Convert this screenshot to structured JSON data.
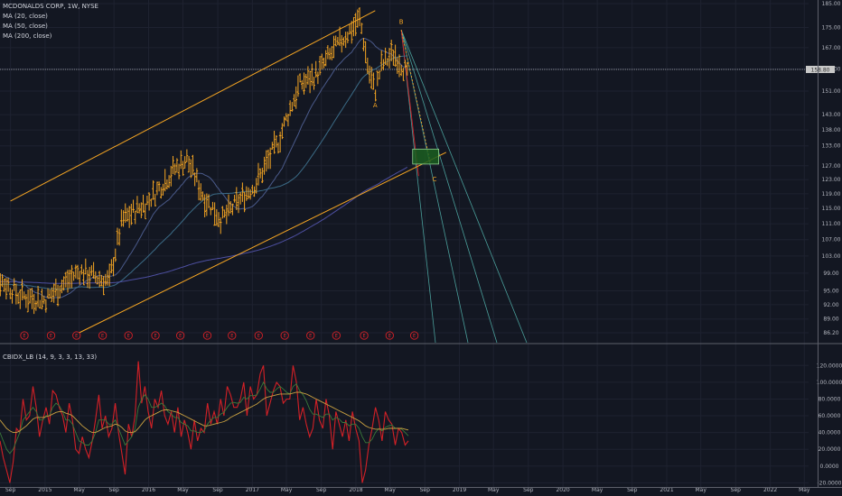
{
  "legend": {
    "symbol": "MCDONALDS CORP, 1W, NYSE",
    "ma20": "MA (20, close)",
    "ma50": "MA (50, close)",
    "ma200": "MA (200, close)",
    "indicator": "CBIDX_LB (14, 9, 3, 3, 13, 33)"
  },
  "colors": {
    "background": "#131722",
    "grid": "#1e2230",
    "bar": "#f6a623",
    "channel": "#f6a623",
    "ma20": "#4a5a8a",
    "ma50": "#3b6b86",
    "ma200": "#4d4fa0",
    "fan": "#4a9e9a",
    "target_box": "#1b5e20",
    "cbidx_main": "#d32026",
    "cbidx_fast": "#3a7a3a",
    "cbidx_slow": "#c8a040",
    "earnings": "#d32026"
  },
  "wave_labels": [
    "A",
    "B",
    "C"
  ],
  "earnings_marker": "E",
  "price_readout": "158.80",
  "chart_data": [
    {
      "type": "bar",
      "title": "MCDONALDS CORP, 1W, NYSE",
      "y_scale": "log",
      "ylim": [
        86.2,
        185
      ],
      "y_ticks": [
        "185.00",
        "175.00",
        "167.00",
        "159.00",
        "151.00",
        "143.00",
        "138.00",
        "133.00",
        "127.00",
        "123.00",
        "119.00",
        "115.00",
        "111.00",
        "107.00",
        "103.00",
        "99.00",
        "95.00",
        "92.00",
        "89.00",
        "86.20"
      ],
      "x_ticks": [
        "Sep",
        "2015",
        "May",
        "Sep",
        "2016",
        "May",
        "Sep",
        "2017",
        "May",
        "Sep",
        "2018",
        "May",
        "Sep",
        "2019",
        "May",
        "Sep",
        "2020",
        "May",
        "Sep",
        "2021",
        "May",
        "Sep",
        "2022",
        "May"
      ],
      "price_path": [
        [
          "2014-06-01",
          100.5
        ],
        [
          "2014-10-01",
          94.0
        ],
        [
          "2015-01-01",
          93.0
        ],
        [
          "2015-05-01",
          99.5
        ],
        [
          "2015-08-15",
          97.0
        ],
        [
          "2015-10-01",
          112.0
        ],
        [
          "2016-01-01",
          117.0
        ],
        [
          "2016-04-01",
          126.0
        ],
        [
          "2016-05-15",
          129.0
        ],
        [
          "2016-07-15",
          118.0
        ],
        [
          "2016-09-15",
          112.0
        ],
        [
          "2016-11-01",
          116.0
        ],
        [
          "2017-01-15",
          122.0
        ],
        [
          "2017-04-01",
          134.0
        ],
        [
          "2017-06-15",
          153.0
        ],
        [
          "2017-08-15",
          157.0
        ],
        [
          "2017-10-15",
          166.0
        ],
        [
          "2018-01-15",
          178.5
        ],
        [
          "2018-02-15",
          158.0
        ],
        [
          "2018-03-10",
          151.0
        ],
        [
          "2018-04-01",
          160.0
        ],
        [
          "2018-05-15",
          165.0
        ],
        [
          "2018-06-25",
          158.5
        ],
        [
          "2018-07-05",
          155.0
        ]
      ],
      "annotations": [
        {
          "label": "A",
          "date": "2018-03-10",
          "price": 145.5
        },
        {
          "label": "B",
          "date": "2018-06-10",
          "price": 176.5
        },
        {
          "label": "C",
          "date": "2018-10-05",
          "price": 122.5
        }
      ],
      "channel": {
        "upper": [
          [
            "2014-09-01",
            117.0
          ],
          [
            "2018-03-10",
            182.0
          ]
        ],
        "lower": [
          [
            "2015-05-01",
            86.2
          ],
          [
            "2018-11-15",
            131.0
          ]
        ]
      },
      "target_zone": {
        "from": "2018-07-20",
        "to": "2018-10-20",
        "low": 127.5,
        "high": 132.0
      },
      "earnings_dates": [
        "2014-10-20",
        "2015-01-22",
        "2015-04-22",
        "2015-07-23",
        "2015-10-22",
        "2016-01-25",
        "2016-04-22",
        "2016-07-26",
        "2016-10-21",
        "2017-01-23",
        "2017-04-25",
        "2017-07-25",
        "2017-10-24",
        "2018-01-30",
        "2018-04-30",
        "2018-07-26"
      ]
    },
    {
      "type": "line",
      "title": "CBIDX_LB (14, 9, 3, 3, 13, 33)",
      "ylim": [
        -25,
        130
      ],
      "y_ticks": [
        "120.0000",
        "100.0000",
        "80.0000",
        "60.0000",
        "40.0000",
        "20.0000",
        "0.0000",
        "-20.0000"
      ],
      "series": [
        {
          "name": "main",
          "values": [
            30,
            10,
            -5,
            -20,
            5,
            45,
            40,
            80,
            55,
            60,
            95,
            70,
            35,
            55,
            70,
            50,
            90,
            85,
            70,
            60,
            40,
            75,
            55,
            20,
            15,
            35,
            20,
            10,
            30,
            55,
            85,
            45,
            60,
            35,
            45,
            75,
            40,
            15,
            -10,
            50,
            35,
            60,
            125,
            75,
            95,
            65,
            45,
            80,
            70,
            90,
            60,
            50,
            65,
            40,
            70,
            35,
            55,
            40,
            20,
            55,
            30,
            45,
            40,
            75,
            50,
            65,
            50,
            80,
            60,
            95,
            85,
            70,
            70,
            80,
            100,
            60,
            95,
            80,
            85,
            110,
            120,
            60,
            75,
            90,
            100,
            95,
            75,
            80,
            80,
            120,
            100,
            55,
            70,
            50,
            35,
            45,
            80,
            55,
            45,
            80,
            60,
            20,
            65,
            50,
            35,
            55,
            30,
            65,
            45,
            30,
            -20,
            -5,
            25,
            45,
            70,
            55,
            30,
            65,
            55,
            50,
            25,
            45,
            40,
            25,
            30
          ]
        },
        {
          "name": "fast",
          "values": [
            40,
            30,
            20,
            15,
            20,
            30,
            40,
            55,
            60,
            65,
            70,
            65,
            55,
            55,
            60,
            60,
            70,
            75,
            72,
            65,
            55,
            55,
            50,
            40,
            30,
            28,
            25,
            25,
            30,
            40,
            55,
            55,
            55,
            50,
            50,
            55,
            45,
            35,
            25,
            30,
            35,
            45,
            70,
            80,
            85,
            80,
            70,
            70,
            72,
            75,
            72,
            65,
            62,
            58,
            58,
            52,
            50,
            48,
            42,
            42,
            40,
            40,
            42,
            50,
            55,
            58,
            58,
            62,
            64,
            70,
            75,
            76,
            75,
            76,
            82,
            80,
            84,
            84,
            85,
            92,
            100,
            92,
            88,
            88,
            92,
            95,
            92,
            88,
            86,
            95,
            98,
            90,
            85,
            78,
            68,
            62,
            62,
            60,
            58,
            62,
            62,
            55,
            58,
            56,
            52,
            52,
            48,
            50,
            50,
            45,
            35,
            28,
            28,
            32,
            40,
            45,
            42,
            46,
            48,
            49,
            45,
            45,
            44,
            40,
            36
          ]
        },
        {
          "name": "slow",
          "values": [
            55,
            50,
            45,
            42,
            40,
            40,
            42,
            45,
            48,
            52,
            56,
            58,
            58,
            58,
            59,
            60,
            62,
            64,
            65,
            65,
            63,
            62,
            60,
            56,
            52,
            48,
            45,
            42,
            40,
            40,
            42,
            44,
            46,
            47,
            48,
            50,
            49,
            46,
            42,
            40,
            40,
            41,
            45,
            50,
            55,
            58,
            60,
            62,
            64,
            66,
            67,
            67,
            66,
            65,
            64,
            62,
            60,
            58,
            56,
            54,
            52,
            50,
            48,
            48,
            49,
            50,
            51,
            52,
            53,
            55,
            58,
            60,
            62,
            64,
            66,
            68,
            70,
            72,
            74,
            77,
            80,
            82,
            83,
            84,
            85,
            86,
            86,
            86,
            86,
            87,
            88,
            88,
            87,
            86,
            84,
            82,
            80,
            78,
            76,
            74,
            72,
            70,
            68,
            66,
            64,
            62,
            60,
            58,
            56,
            54,
            51,
            48,
            46,
            45,
            44,
            44,
            44,
            44,
            45,
            45,
            45,
            45,
            45,
            44,
            43
          ]
        }
      ]
    }
  ]
}
